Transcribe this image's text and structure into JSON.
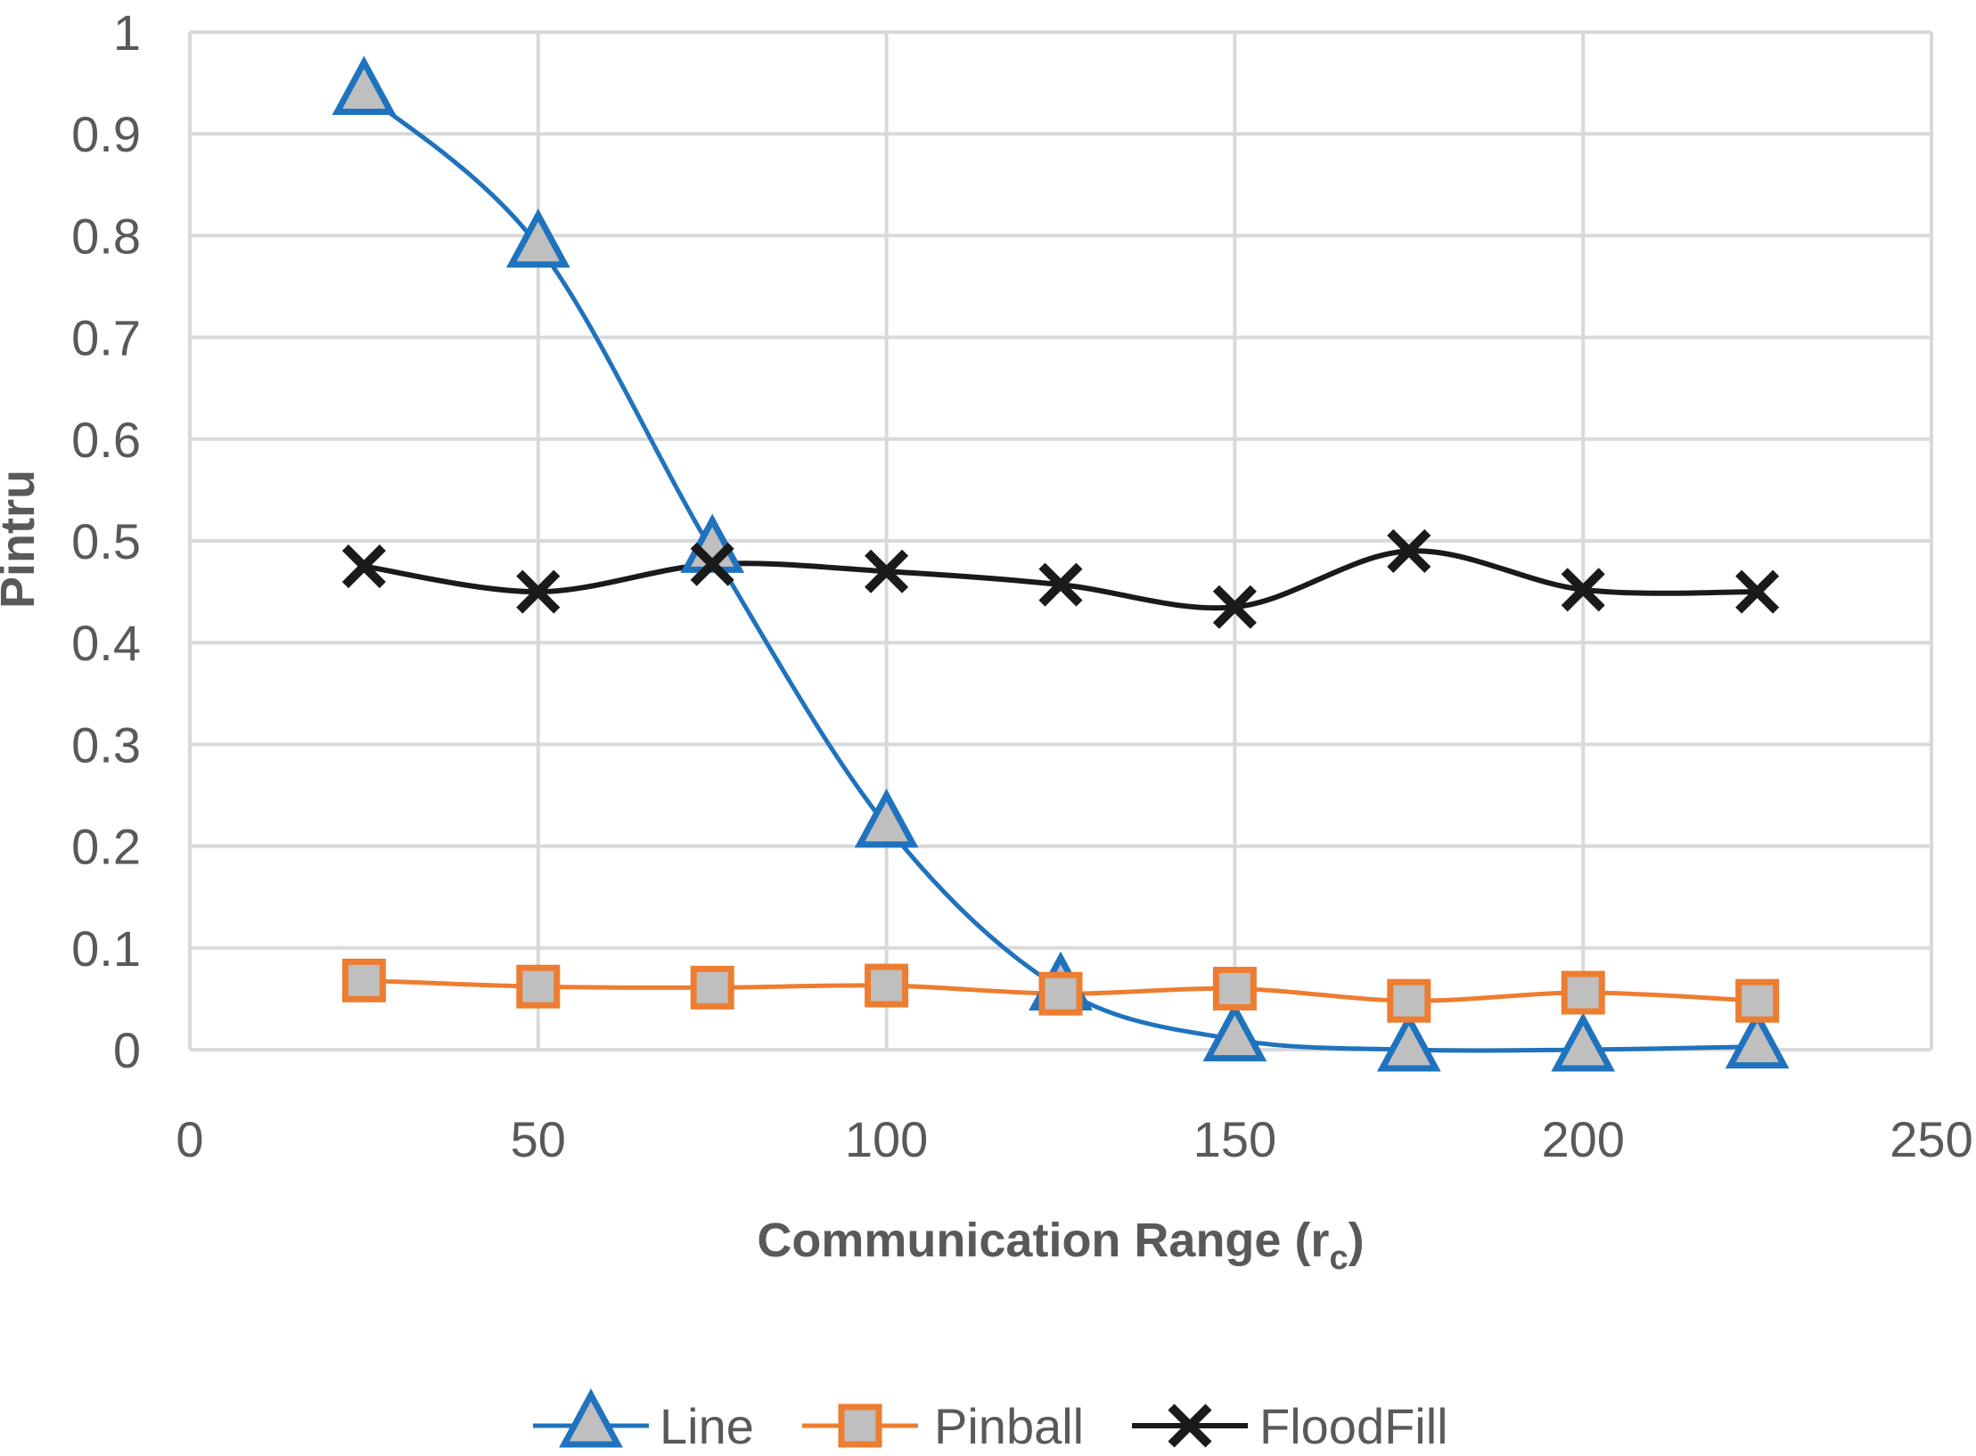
{
  "chart_data": {
    "type": "line",
    "title": "",
    "xlabel": "Communication Range (r",
    "xlabel_subscript": "c",
    "xlabel_close": ")",
    "ylabel": "Pintru",
    "xlim": [
      0,
      250
    ],
    "ylim": [
      0,
      1
    ],
    "x_ticks": [
      "0",
      "50",
      "100",
      "150",
      "200",
      "250"
    ],
    "y_ticks": [
      "0",
      "0.1",
      "0.2",
      "0.3",
      "0.4",
      "0.5",
      "0.6",
      "0.7",
      "0.8",
      "0.9",
      "1"
    ],
    "grid": true,
    "legend_position": "bottom",
    "x": [
      25,
      50,
      75,
      100,
      125,
      150,
      175,
      200,
      225
    ],
    "series": [
      {
        "name": "Line",
        "color": "#1f73be",
        "marker": "triangle",
        "values": [
          0.94,
          0.79,
          0.49,
          0.22,
          0.06,
          0.01,
          0.0,
          0.0,
          0.003
        ]
      },
      {
        "name": "Pinball",
        "color": "#ed7d31",
        "marker": "square",
        "values": [
          0.068,
          0.062,
          0.061,
          0.063,
          0.055,
          0.06,
          0.048,
          0.056,
          0.048
        ]
      },
      {
        "name": "FloodFill",
        "color": "#1a1a1a",
        "marker": "x",
        "values": [
          0.475,
          0.45,
          0.477,
          0.47,
          0.457,
          0.435,
          0.49,
          0.452,
          0.45
        ]
      }
    ]
  }
}
